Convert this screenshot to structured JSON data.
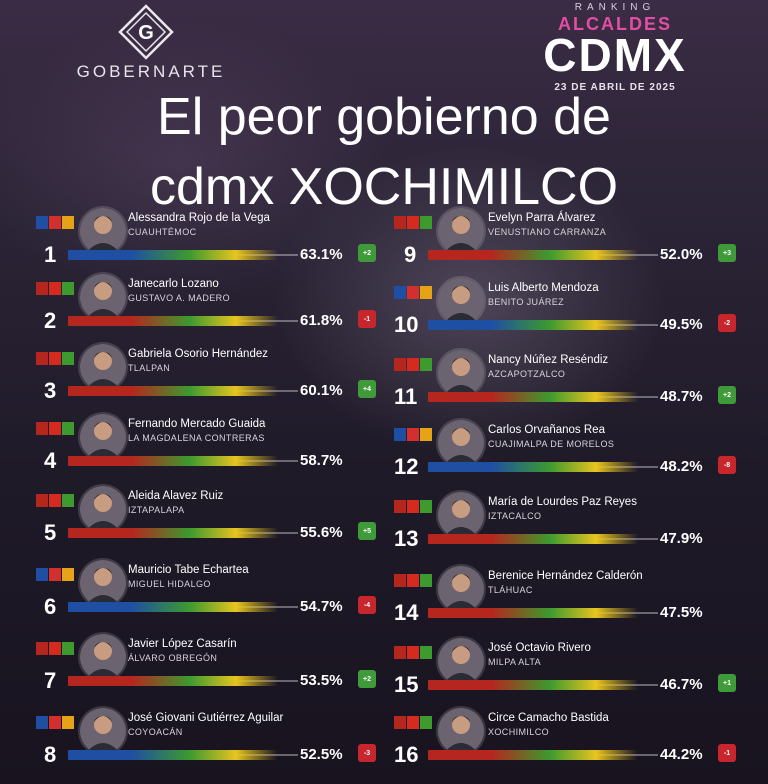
{
  "brand": {
    "name": "GOBERNARTE",
    "mark_letter": "G"
  },
  "ranking": {
    "kicker": "RANKING",
    "subtitle": "ALCALDES",
    "title": "CDMX",
    "date": "23 DE ABRIL DE 2025"
  },
  "headline": {
    "line1": "El peor gobierno de",
    "line2": "cdmx XOCHIMILCO"
  },
  "colors": {
    "morena": "#b5261e",
    "pan": "#1f4fa3",
    "green": "#3c9a2f",
    "yellow": "#e7c41f",
    "up": "#3f9b3a",
    "down": "#c8262d"
  },
  "left": [
    {
      "rank": "1",
      "name": "Alessandra Rojo de la Vega",
      "borough": "CUAUHTÉMOC",
      "pct": "63.1%",
      "change": "+2",
      "dir": "up",
      "coalition": "pan"
    },
    {
      "rank": "2",
      "name": "Janecarlo Lozano",
      "borough": "GUSTAVO A. MADERO",
      "pct": "61.8%",
      "change": "-1",
      "dir": "down",
      "coalition": "morena"
    },
    {
      "rank": "3",
      "name": "Gabriela Osorio Hernández",
      "borough": "TLALPAN",
      "pct": "60.1%",
      "change": "+4",
      "dir": "up",
      "coalition": "morena"
    },
    {
      "rank": "4",
      "name": "Fernando Mercado Guaida",
      "borough": "LA MAGDALENA CONTRERAS",
      "pct": "58.7%",
      "change": "",
      "dir": "",
      "coalition": "morena"
    },
    {
      "rank": "5",
      "name": "Aleida Alavez Ruiz",
      "borough": "IZTAPALAPA",
      "pct": "55.6%",
      "change": "+5",
      "dir": "up",
      "coalition": "morena"
    },
    {
      "rank": "6",
      "name": "Mauricio Tabe Echartea",
      "borough": "MIGUEL HIDALGO",
      "pct": "54.7%",
      "change": "-4",
      "dir": "down",
      "coalition": "pan"
    },
    {
      "rank": "7",
      "name": "Javier López Casarín",
      "borough": "ÁLVARO OBREGÓN",
      "pct": "53.5%",
      "change": "+2",
      "dir": "up",
      "coalition": "morena"
    },
    {
      "rank": "8",
      "name": "José Giovani Gutiérrez Aguilar",
      "borough": "COYOACÁN",
      "pct": "52.5%",
      "change": "-3",
      "dir": "down",
      "coalition": "pan"
    }
  ],
  "right": [
    {
      "rank": "9",
      "name": "Evelyn Parra Álvarez",
      "borough": "VENUSTIANO CARRANZA",
      "pct": "52.0%",
      "change": "+3",
      "dir": "up",
      "coalition": "morena"
    },
    {
      "rank": "10",
      "name": "Luis Alberto Mendoza",
      "borough": "BENITO JUÁREZ",
      "pct": "49.5%",
      "change": "-2",
      "dir": "down",
      "coalition": "pan"
    },
    {
      "rank": "11",
      "name": "Nancy Núñez Reséndiz",
      "borough": "AZCAPOTZALCO",
      "pct": "48.7%",
      "change": "+2",
      "dir": "up",
      "coalition": "morena"
    },
    {
      "rank": "12",
      "name": "Carlos Orvañanos Rea",
      "borough": "CUAJIMALPA DE MORELOS",
      "pct": "48.2%",
      "change": "-8",
      "dir": "down",
      "coalition": "pan"
    },
    {
      "rank": "13",
      "name": "María de Lourdes Paz Reyes",
      "borough": "IZTACALCO",
      "pct": "47.9%",
      "change": "",
      "dir": "",
      "coalition": "morena"
    },
    {
      "rank": "14",
      "name": "Berenice Hernández Calderón",
      "borough": "TLÁHUAC",
      "pct": "47.5%",
      "change": "",
      "dir": "",
      "coalition": "morena"
    },
    {
      "rank": "15",
      "name": "José Octavio Rivero",
      "borough": "MILPA ALTA",
      "pct": "46.7%",
      "change": "+1",
      "dir": "up",
      "coalition": "morena"
    },
    {
      "rank": "16",
      "name": "Circe Camacho Bastida",
      "borough": "XOCHIMILCO",
      "pct": "44.2%",
      "change": "-1",
      "dir": "down",
      "coalition": "morena"
    }
  ]
}
